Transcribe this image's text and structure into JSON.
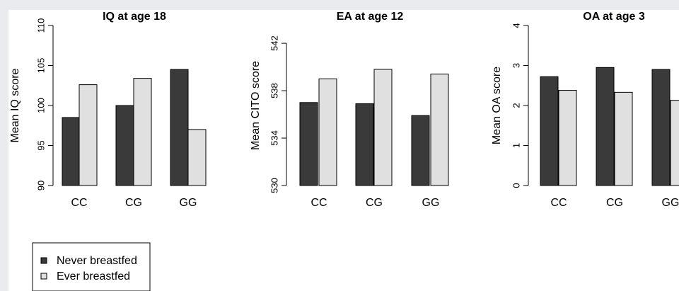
{
  "theme": {
    "background": "#e9ebee",
    "panel": "#ffffff",
    "never_color": "#3a3a3a",
    "ever_color": "#e0e0e0"
  },
  "legend": [
    {
      "label": "Never breastfed",
      "color": "#3a3a3a"
    },
    {
      "label": "Ever breastfed",
      "color": "#e0e0e0"
    }
  ],
  "chart_data": [
    {
      "type": "bar",
      "title": "IQ at age 18",
      "ylabel": "Mean IQ score",
      "xlabel": "",
      "categories": [
        "CC",
        "CG",
        "GG"
      ],
      "ylim": [
        90,
        110
      ],
      "yticks": [
        90,
        95,
        100,
        105,
        110
      ],
      "series": [
        {
          "name": "Never breastfed",
          "values": [
            98.5,
            100.0,
            104.5
          ]
        },
        {
          "name": "Ever breastfed",
          "values": [
            102.6,
            103.4,
            97.0
          ]
        }
      ]
    },
    {
      "type": "bar",
      "title": "EA at age 12",
      "ylabel": "Mean CITO score",
      "xlabel": "",
      "categories": [
        "CC",
        "CG",
        "GG"
      ],
      "ylim": [
        530,
        543.5
      ],
      "yticks": [
        530,
        534,
        538,
        542
      ],
      "series": [
        {
          "name": "Never breastfed",
          "values": [
            537.0,
            536.9,
            535.9
          ]
        },
        {
          "name": "Ever breastfed",
          "values": [
            539.0,
            539.8,
            539.4
          ]
        }
      ]
    },
    {
      "type": "bar",
      "title": "OA at age 3",
      "ylabel": "Mean OA score",
      "xlabel": "",
      "categories": [
        "CC",
        "CG",
        "GG"
      ],
      "ylim": [
        0,
        4
      ],
      "yticks": [
        0,
        1,
        2,
        3,
        4
      ],
      "series": [
        {
          "name": "Never breastfed",
          "values": [
            2.72,
            2.95,
            2.9
          ]
        },
        {
          "name": "Ever breastfed",
          "values": [
            2.38,
            2.33,
            2.13
          ]
        }
      ]
    }
  ]
}
